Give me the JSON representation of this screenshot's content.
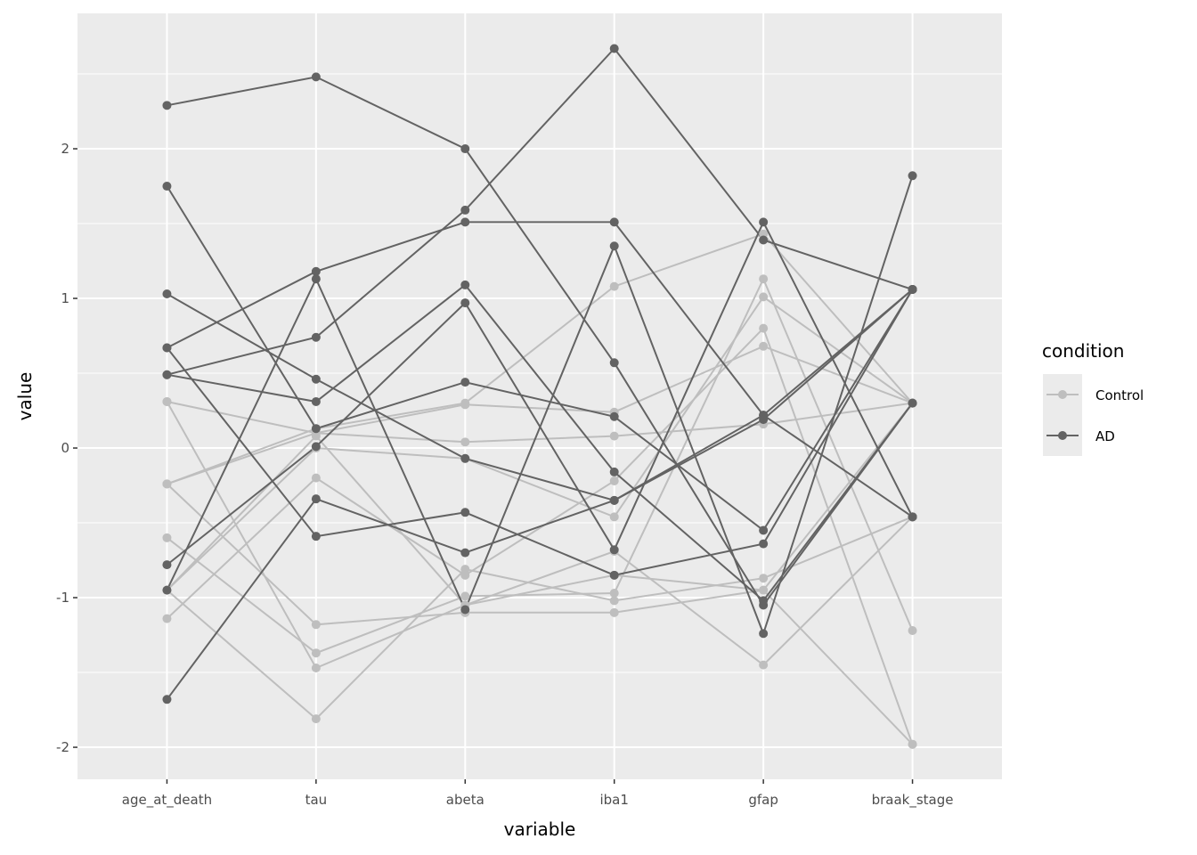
{
  "chart_data": {
    "type": "line",
    "title": "",
    "xlabel": "variable",
    "ylabel": "value",
    "categories": [
      "age_at_death",
      "tau",
      "abeta",
      "iba1",
      "gfap",
      "braak_stage"
    ],
    "ylim": [
      -2.214,
      2.905
    ],
    "yticks": [
      -2,
      -1,
      0,
      1,
      2
    ],
    "ytick_labels": [
      "-2",
      "-1",
      "0",
      "1",
      "2"
    ],
    "grid": true,
    "legend": {
      "title": "condition",
      "position": "right",
      "entries": [
        "Control",
        "AD"
      ]
    },
    "colors": {
      "Control": "#BEBEBE",
      "AD": "#636363",
      "panel": "#EBEBEB",
      "grid": "#FFFFFF"
    },
    "series": [
      {
        "name": "Control",
        "rows": [
          [
            0.31,
            0.1,
            0.04,
            0.08,
            0.16,
            0.3
          ],
          [
            0.31,
            -1.47,
            -1.05,
            -0.85,
            -0.95,
            0.3
          ],
          [
            -0.24,
            0.13,
            0.3,
            1.08,
            1.43,
            0.3
          ],
          [
            -0.24,
            0.1,
            0.29,
            0.24,
            0.68,
            0.3
          ],
          [
            -0.24,
            -1.18,
            -1.1,
            -1.1,
            -0.95,
            -1.98
          ],
          [
            -0.6,
            -1.37,
            -0.99,
            -0.97,
            1.13,
            -1.22
          ],
          [
            -0.95,
            0.0,
            -0.07,
            -0.46,
            1.01,
            0.3
          ],
          [
            -0.95,
            -1.81,
            -0.81,
            -1.02,
            -0.87,
            -0.46
          ],
          [
            -1.14,
            -0.2,
            -0.85,
            -0.22,
            0.8,
            -1.98
          ],
          [
            -0.95,
            0.08,
            -1.05,
            -0.69,
            -1.45,
            -0.46
          ]
        ]
      },
      {
        "name": "AD",
        "rows": [
          [
            2.29,
            2.48,
            2.0,
            0.57,
            -1.05,
            0.3
          ],
          [
            1.75,
            0.13,
            0.44,
            0.21,
            -0.55,
            1.06
          ],
          [
            1.03,
            0.46,
            -0.07,
            -0.35,
            0.22,
            1.06
          ],
          [
            0.67,
            1.18,
            1.51,
            1.51,
            0.22,
            -0.46
          ],
          [
            0.67,
            -0.59,
            -0.43,
            -0.85,
            -0.64,
            1.06
          ],
          [
            0.49,
            0.74,
            1.59,
            2.67,
            1.39,
            1.06
          ],
          [
            0.49,
            0.31,
            1.09,
            -0.16,
            -1.02,
            0.3
          ],
          [
            -0.78,
            0.01,
            0.97,
            -0.68,
            1.51,
            -0.46
          ],
          [
            -0.95,
            1.13,
            -1.08,
            1.35,
            -1.24,
            1.82
          ],
          [
            -1.68,
            -0.34,
            -0.7,
            -0.35,
            0.19,
            1.06
          ]
        ]
      }
    ]
  }
}
